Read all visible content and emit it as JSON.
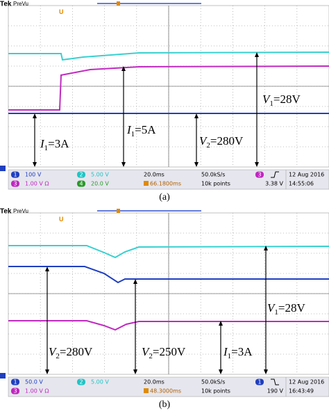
{
  "panels": [
    {
      "brand": "Tek",
      "mode": "PreVu",
      "caption": "(a)",
      "annotations": [
        {
          "symbol": "I",
          "subscript": "1",
          "text": "=3A"
        },
        {
          "symbol": "I",
          "subscript": "1",
          "text": "=5A"
        },
        {
          "symbol": "V",
          "subscript": "2",
          "text": "=280V"
        },
        {
          "symbol": "V",
          "subscript": "1",
          "text": "=28V"
        }
      ],
      "channels": [
        {
          "id": "1",
          "scale": "100 V"
        },
        {
          "id": "2",
          "scale": "5.00 V"
        },
        {
          "id": "3",
          "scale": "1.00 V Ω"
        },
        {
          "id": "4",
          "scale": "20.0 V"
        }
      ],
      "timebase": "20.0ms",
      "trigger_position": "66.1800ms",
      "sample_rate": "50.0kS/s",
      "record_length": "10k points",
      "trigger_channel": "3",
      "trigger_level": "3.38 V",
      "date": "12 Aug 2016",
      "time": "14:55:06"
    },
    {
      "brand": "Tek",
      "mode": "PreVu",
      "caption": "(b)",
      "annotations": [
        {
          "symbol": "V",
          "subscript": "2",
          "text": "=280V"
        },
        {
          "symbol": "V",
          "subscript": "2",
          "text": "=250V"
        },
        {
          "symbol": "I",
          "subscript": "1",
          "text": "=3A"
        },
        {
          "symbol": "V",
          "subscript": "1",
          "text": "=28V"
        }
      ],
      "channels": [
        {
          "id": "1",
          "scale": "50.0 V"
        },
        {
          "id": "2",
          "scale": "5.00 V"
        },
        {
          "id": "3",
          "scale": "1.00 V Ω"
        }
      ],
      "timebase": "20.0ms",
      "trigger_position": "48.3000ms",
      "sample_rate": "50.0kS/s",
      "record_length": "10k points",
      "trigger_channel": "1",
      "trigger_level": "190 V",
      "date": "12 Aug 2016",
      "time": "16:43:49"
    }
  ]
}
